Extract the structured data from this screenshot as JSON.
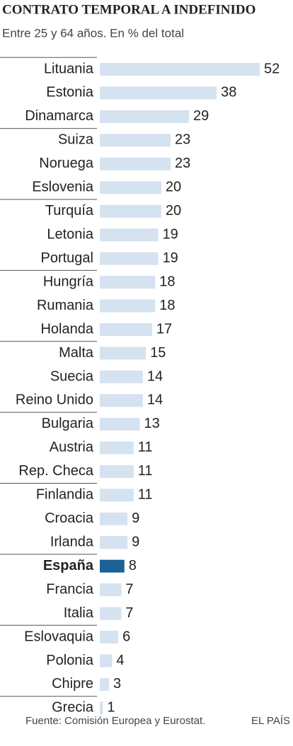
{
  "chart_data": {
    "type": "bar",
    "orientation": "horizontal",
    "title": "CONTRATO TEMPORAL A INDEFINIDO",
    "subtitle": "Entre 25 y 64 años. En % del total",
    "categories": [
      "Lituania",
      "Estonia",
      "Dinamarca",
      "Suiza",
      "Noruega",
      "Eslovenia",
      "Turquía",
      "Letonia",
      "Portugal",
      "Hungría",
      "Rumania",
      "Holanda",
      "Malta",
      "Suecia",
      "Reino Unido",
      "Bulgaria",
      "Austria",
      "Rep. Checa",
      "Finlandia",
      "Croacia",
      "Irlanda",
      "España",
      "Francia",
      "Italia",
      "Eslovaquia",
      "Polonia",
      "Chipre",
      "Grecia"
    ],
    "values": [
      52,
      38,
      29,
      23,
      23,
      20,
      20,
      19,
      19,
      18,
      18,
      17,
      15,
      14,
      14,
      13,
      11,
      11,
      11,
      9,
      9,
      8,
      7,
      7,
      6,
      4,
      3,
      1
    ],
    "color": "#d5e2f0",
    "highlight": {
      "category": "España",
      "color": "#1b6196"
    },
    "source": "Fuente: Comisión Europea y Eurostat.",
    "brand": "EL PAÍS"
  }
}
